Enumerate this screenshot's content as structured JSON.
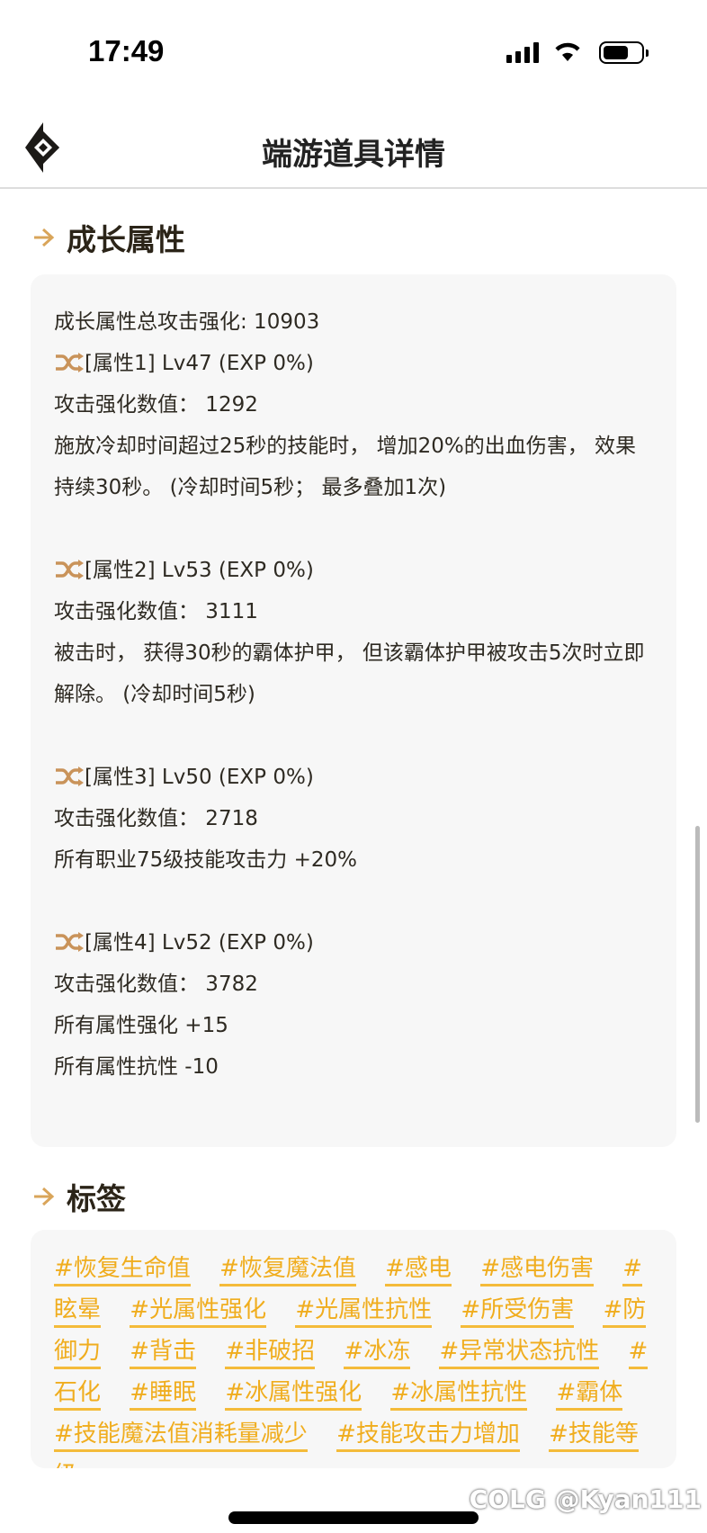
{
  "status_bar": {
    "time": "17:49",
    "signal-icon": "cellular-signal-icon",
    "wifi-icon": "wifi-icon",
    "battery-icon": "battery-icon"
  },
  "header": {
    "title": "端游道具详情",
    "logo-icon": "diamond-logo-icon"
  },
  "growth": {
    "title": "成长属性",
    "total": "成长属性总攻击强化: 10903",
    "attributes": [
      {
        "header": "[属性1] Lv47 (EXP 0%)",
        "value": "攻击强化数值： 1292",
        "effects": [
          "施放冷却时间超过25秒的技能时， 增加20%的出血伤害， 效果持续30秒。 (冷却时间5秒； 最多叠加1次)"
        ]
      },
      {
        "header": "[属性2] Lv53 (EXP 0%)",
        "value": "攻击强化数值： 3111",
        "effects": [
          "被击时， 获得30秒的霸体护甲， 但该霸体护甲被攻击5次时立即解除。 (冷却时间5秒)"
        ]
      },
      {
        "header": "[属性3] Lv50 (EXP 0%)",
        "value": "攻击强化数值： 2718",
        "effects": [
          "所有职业75级技能攻击力 +20%"
        ]
      },
      {
        "header": "[属性4] Lv52 (EXP 0%)",
        "value": "攻击强化数值： 3782",
        "effects": [
          "所有属性强化 +15",
          "所有属性抗性 -10"
        ]
      }
    ]
  },
  "tags": {
    "title": "标签",
    "items": [
      "#恢复生命值",
      "#恢复魔法值",
      "#感电",
      "#感电伤害",
      "#眩晕",
      "#光属性强化",
      "#光属性抗性",
      "#所受伤害",
      "#防御力",
      "#背击",
      "#非破招",
      "#冰冻",
      "#异常状态抗性",
      "#石化",
      "#睡眠",
      "#冰属性强化",
      "#冰属性抗性",
      "#霸体",
      "#技能魔法值消耗量减少",
      "#技能攻击力增加",
      "#技能等级"
    ]
  },
  "watermark": "COLG @Kyan111",
  "colors": {
    "accent": "#f0ad1e",
    "card_bg": "#f7f7f7",
    "icon_gold": "#d9a55a"
  }
}
